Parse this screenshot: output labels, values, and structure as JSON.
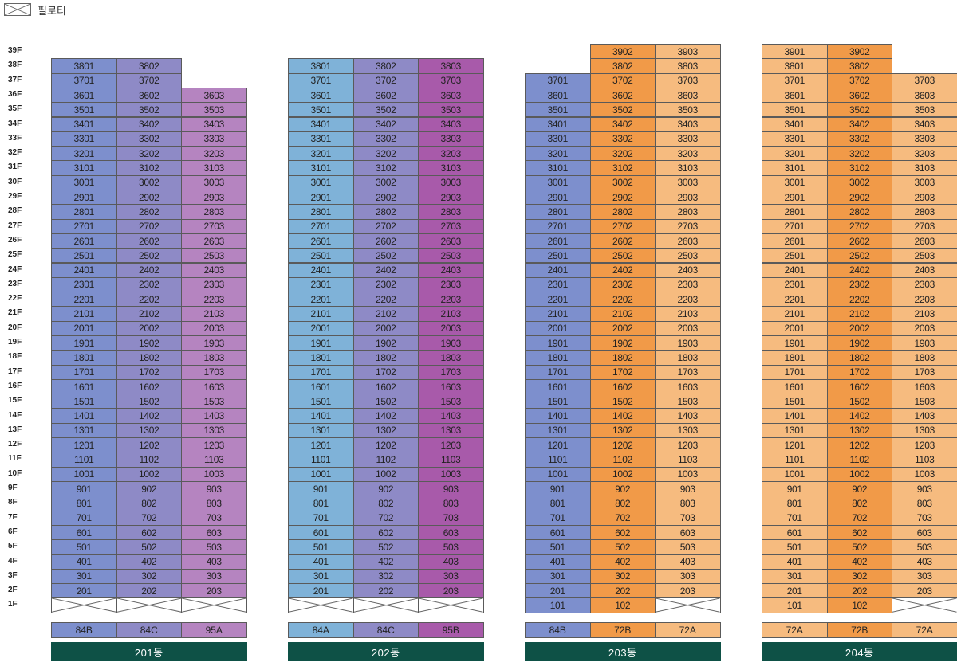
{
  "legend": {
    "pilotis_label": "필로티"
  },
  "floors": [
    "39F",
    "38F",
    "37F",
    "36F",
    "35F",
    "34F",
    "33F",
    "32F",
    "31F",
    "30F",
    "29F",
    "28F",
    "27F",
    "26F",
    "25F",
    "24F",
    "23F",
    "22F",
    "21F",
    "20F",
    "19F",
    "18F",
    "17F",
    "16F",
    "15F",
    "14F",
    "13F",
    "12F",
    "11F",
    "10F",
    "9F",
    "8F",
    "7F",
    "6F",
    "5F",
    "4F",
    "3F",
    "2F",
    "1F"
  ],
  "colors": {
    "84A": "#7fb2d8",
    "84B": "#7d8fcd",
    "84C": "#8e8ac6",
    "95A": "#b584c0",
    "95B": "#a85aaa",
    "72A": "#f6bb7f",
    "72B": "#f19a48",
    "building_label_bg": "#0e5146"
  },
  "buildings": [
    {
      "name": "201동",
      "lines": [
        {
          "type": "84B",
          "top_floor": 38,
          "pilotis": true
        },
        {
          "type": "84C",
          "top_floor": 38,
          "pilotis": true
        },
        {
          "type": "95A",
          "top_floor": 36,
          "pilotis": true
        }
      ]
    },
    {
      "name": "202동",
      "lines": [
        {
          "type": "84A",
          "top_floor": 38,
          "pilotis": true
        },
        {
          "type": "84C",
          "top_floor": 38,
          "pilotis": true
        },
        {
          "type": "95B",
          "top_floor": 38,
          "pilotis": true
        }
      ]
    },
    {
      "name": "203동",
      "lines": [
        {
          "type": "84B",
          "top_floor": 37,
          "pilotis": false
        },
        {
          "type": "72B",
          "top_floor": 39,
          "pilotis": false
        },
        {
          "type": "72A",
          "top_floor": 39,
          "pilotis": true
        }
      ]
    },
    {
      "name": "204동",
      "lines": [
        {
          "type": "72A",
          "top_floor": 39,
          "pilotis": false
        },
        {
          "type": "72B",
          "top_floor": 39,
          "pilotis": false
        },
        {
          "type": "72A",
          "top_floor": 37,
          "pilotis": true
        }
      ]
    }
  ]
}
